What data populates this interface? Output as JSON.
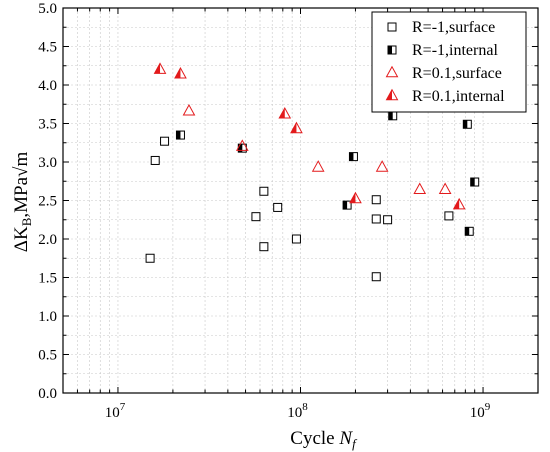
{
  "chart_data": {
    "type": "scatter",
    "xscale": "log",
    "xlim": [
      5000000,
      2000000000
    ],
    "ylim": [
      0.0,
      5.0
    ],
    "grid": true,
    "legend_position": "top-right",
    "x_ticks": [
      {
        "value": 10000000,
        "base": "10",
        "exp": "7"
      },
      {
        "value": 100000000,
        "base": "10",
        "exp": "8"
      },
      {
        "value": 1000000000,
        "base": "10",
        "exp": "9"
      }
    ],
    "y_ticks": [
      "0.0",
      "0.5",
      "1.0",
      "1.5",
      "2.0",
      "2.5",
      "3.0",
      "3.5",
      "4.0",
      "4.5",
      "5.0"
    ],
    "xlabel": {
      "text": "Cycle ",
      "italic": "N",
      "sub": "f"
    },
    "ylabel": {
      "delta": "ΔK",
      "sub": "B",
      "unit": ",MPa",
      "root": "√m"
    },
    "colors": {
      "black": "#000000",
      "red": "#e31a1c",
      "grid": "#c8c8c8"
    },
    "series": [
      {
        "name": "R=-1,surface",
        "marker": "open-square",
        "color": "#000000",
        "points": [
          {
            "x": 15000000,
            "y": 1.75
          },
          {
            "x": 16000000,
            "y": 3.02
          },
          {
            "x": 18000000,
            "y": 3.27
          },
          {
            "x": 57000000,
            "y": 2.29
          },
          {
            "x": 63000000,
            "y": 1.9
          },
          {
            "x": 63000000,
            "y": 2.62
          },
          {
            "x": 75000000,
            "y": 2.41
          },
          {
            "x": 95000000,
            "y": 2.0
          },
          {
            "x": 260000000,
            "y": 2.51
          },
          {
            "x": 260000000,
            "y": 2.26
          },
          {
            "x": 260000000,
            "y": 1.51
          },
          {
            "x": 300000000,
            "y": 2.25
          },
          {
            "x": 650000000,
            "y": 2.3
          }
        ]
      },
      {
        "name": "R=-1,internal",
        "marker": "half-filled-square",
        "color": "#000000",
        "points": [
          {
            "x": 22000000,
            "y": 3.35
          },
          {
            "x": 48000000,
            "y": 3.18
          },
          {
            "x": 180000000,
            "y": 2.44
          },
          {
            "x": 195000000,
            "y": 3.07
          },
          {
            "x": 320000000,
            "y": 3.6
          },
          {
            "x": 820000000,
            "y": 3.49
          },
          {
            "x": 840000000,
            "y": 2.1
          },
          {
            "x": 900000000,
            "y": 2.74
          }
        ]
      },
      {
        "name": "R=0.1,surface",
        "marker": "open-triangle",
        "color": "#e31a1c",
        "points": [
          {
            "x": 24500000,
            "y": 3.66
          },
          {
            "x": 48000000,
            "y": 3.2
          },
          {
            "x": 125000000,
            "y": 2.93
          },
          {
            "x": 280000000,
            "y": 2.93
          },
          {
            "x": 450000000,
            "y": 2.64
          },
          {
            "x": 620000000,
            "y": 2.64
          }
        ]
      },
      {
        "name": "R=0.1,internal",
        "marker": "half-filled-triangle",
        "color": "#e31a1c",
        "points": [
          {
            "x": 17000000,
            "y": 4.2
          },
          {
            "x": 22000000,
            "y": 4.14
          },
          {
            "x": 82000000,
            "y": 3.62
          },
          {
            "x": 95000000,
            "y": 3.43
          },
          {
            "x": 200000000,
            "y": 2.52
          },
          {
            "x": 740000000,
            "y": 2.44
          }
        ]
      }
    ]
  }
}
